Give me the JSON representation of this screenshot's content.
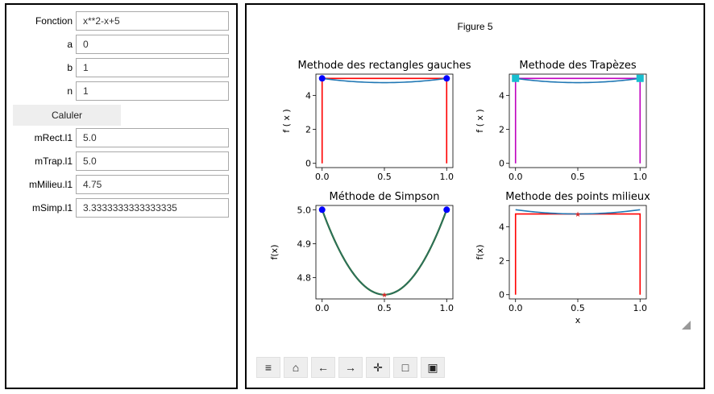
{
  "form": {
    "fonction_label": "Fonction",
    "fonction_value": "x**2-x+5",
    "a_label": "a",
    "a_value": "0",
    "b_label": "b",
    "b_value": "1",
    "n_label": "n",
    "n_value": "1",
    "calc_label": "Caluler",
    "mrect_label": "mRect.l1",
    "mrect_value": "5.0",
    "mtrap_label": "mTrap.l1",
    "mtrap_value": "5.0",
    "mmilieu_label": "mMilieu.l1",
    "mmilieu_value": "4.75",
    "msimp_label": "mSimp.l1",
    "msimp_value": "3.3333333333333335"
  },
  "figure": {
    "title": "Figure 5",
    "toolbar": [
      "menu-icon",
      "home-icon",
      "back-arrow-icon",
      "forward-arrow-icon",
      "pan-move-icon",
      "zoom-rect-icon",
      "save-icon"
    ],
    "toolbar_glyphs": [
      "≡",
      "⌂",
      "←",
      "→",
      "✛",
      "□",
      "▣"
    ]
  },
  "chart_data": [
    {
      "type": "line",
      "title": "Methode des rectangles gauches",
      "xlabel": "",
      "ylabel": "f ( x )",
      "xlim": [
        -0.05,
        1.05
      ],
      "ylim": [
        -0.25,
        5.25
      ],
      "xticks": [
        "0.0",
        "0.5",
        "1.0"
      ],
      "yticks": [
        "0",
        "2",
        "4"
      ],
      "xtick_values": [
        0,
        0.5,
        1
      ],
      "ytick_values": [
        0,
        2,
        4
      ],
      "curve": {
        "function": "x**2-x+5",
        "x": [
          0,
          1
        ],
        "color": "#1f77b4"
      },
      "shape": {
        "x": [
          0,
          0,
          1,
          1
        ],
        "y": [
          0,
          5,
          5,
          0
        ],
        "color": "#ff0000"
      },
      "markers": {
        "x": [
          0,
          1
        ],
        "y": [
          5,
          5
        ],
        "color": "#0000ff",
        "symbol": "circle"
      },
      "grid": false
    },
    {
      "type": "line",
      "title": "Methode des Trapèzes",
      "xlabel": "",
      "ylabel": "f ( x )",
      "xlim": [
        -0.05,
        1.05
      ],
      "ylim": [
        -0.25,
        5.25
      ],
      "xticks": [
        "0.0",
        "0.5",
        "1.0"
      ],
      "yticks": [
        "0",
        "2",
        "4"
      ],
      "xtick_values": [
        0,
        0.5,
        1
      ],
      "ytick_values": [
        0,
        2,
        4
      ],
      "curve": {
        "function": "x**2-x+5",
        "x": [
          0,
          1
        ],
        "color": "#1f77b4"
      },
      "shape": {
        "x": [
          0,
          0,
          1,
          1
        ],
        "y": [
          0,
          5,
          5,
          0
        ],
        "color": "#bf00bf"
      },
      "markers": {
        "x": [
          0,
          1
        ],
        "y": [
          5,
          5
        ],
        "color": "#17becf",
        "symbol": "square"
      },
      "grid": false
    },
    {
      "type": "line",
      "title": "Méthode de Simpson",
      "xlabel": "",
      "ylabel": "f(x)",
      "xlim": [
        -0.05,
        1.05
      ],
      "ylim": [
        4.7375,
        5.0125
      ],
      "xticks": [
        "0.0",
        "0.5",
        "1.0"
      ],
      "yticks": [
        "4.8",
        "4.9",
        "5.0"
      ],
      "xtick_values": [
        0,
        0.5,
        1
      ],
      "ytick_values": [
        4.8,
        4.9,
        5.0
      ],
      "curve": {
        "function": "x**2-x+5",
        "x": [
          0,
          1
        ],
        "color": "#1f77b4"
      },
      "shape_curve": {
        "function": "x**2-x+5",
        "x": [
          0,
          1
        ],
        "color": "#2e6b2e"
      },
      "markers": {
        "x": [
          0,
          1
        ],
        "y": [
          5,
          5
        ],
        "color": "#0000ff",
        "symbol": "circle"
      },
      "star": {
        "x": [
          0.5
        ],
        "y": [
          4.75
        ],
        "color": "#d62728"
      },
      "grid": false
    },
    {
      "type": "line",
      "title": "Methode des points milieux",
      "xlabel": "x",
      "ylabel": "f(x)",
      "xlim": [
        -0.05,
        1.05
      ],
      "ylim": [
        -0.25,
        5.25
      ],
      "xticks": [
        "0.0",
        "0.5",
        "1.0"
      ],
      "yticks": [
        "0",
        "2",
        "4"
      ],
      "xtick_values": [
        0,
        0.5,
        1
      ],
      "ytick_values": [
        0,
        2,
        4
      ],
      "curve": {
        "function": "x**2-x+5",
        "x": [
          0,
          1
        ],
        "color": "#1f77b4"
      },
      "shape": {
        "x": [
          0,
          0,
          1,
          1
        ],
        "y": [
          0,
          4.75,
          4.75,
          0
        ],
        "color": "#ff0000"
      },
      "star": {
        "x": [
          0.5
        ],
        "y": [
          4.75
        ],
        "color": "#d62728"
      },
      "grid": false
    }
  ]
}
